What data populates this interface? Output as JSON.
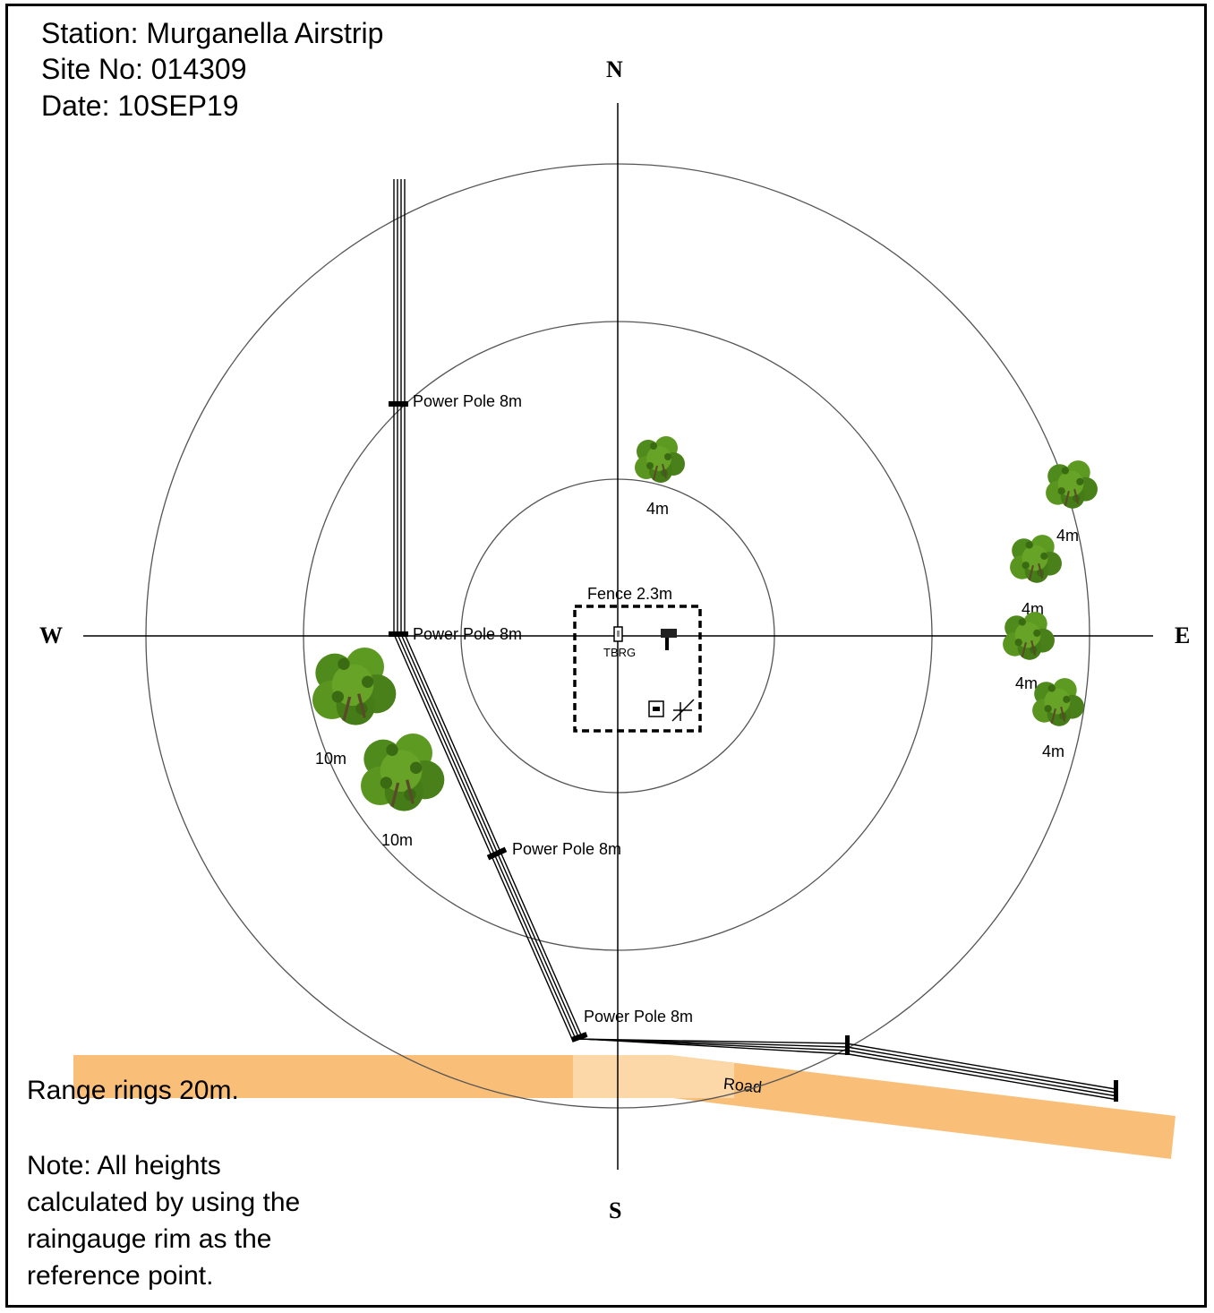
{
  "header": {
    "station": "Station: Murganella Airstrip",
    "site": "Site No: 014309",
    "date": "Date: 10SEP19"
  },
  "compass": {
    "north": "N",
    "south": "S",
    "east": "E",
    "west": "W"
  },
  "fence": {
    "label": "Fence 2.3m"
  },
  "instrument": {
    "tbrg": "TBRG"
  },
  "power_poles": [
    {
      "label": "Power Pole 8m"
    },
    {
      "label": "Power Pole 8m"
    },
    {
      "label": "Power Pole 8m"
    },
    {
      "label": "Power Pole 8m"
    }
  ],
  "trees": [
    {
      "label": "4m"
    },
    {
      "label": "4m"
    },
    {
      "label": "4m"
    },
    {
      "label": "4m"
    },
    {
      "label": "4m"
    },
    {
      "label": "10m"
    },
    {
      "label": "10m"
    }
  ],
  "road": {
    "label": "Road",
    "color": "#f9bf79"
  },
  "tree_color": "#4f8a1c",
  "footer": {
    "range": "Range rings 20m.",
    "note_lines": [
      "Note: All heights",
      "calculated by using the",
      "raingauge rim as the",
      "reference point."
    ]
  }
}
